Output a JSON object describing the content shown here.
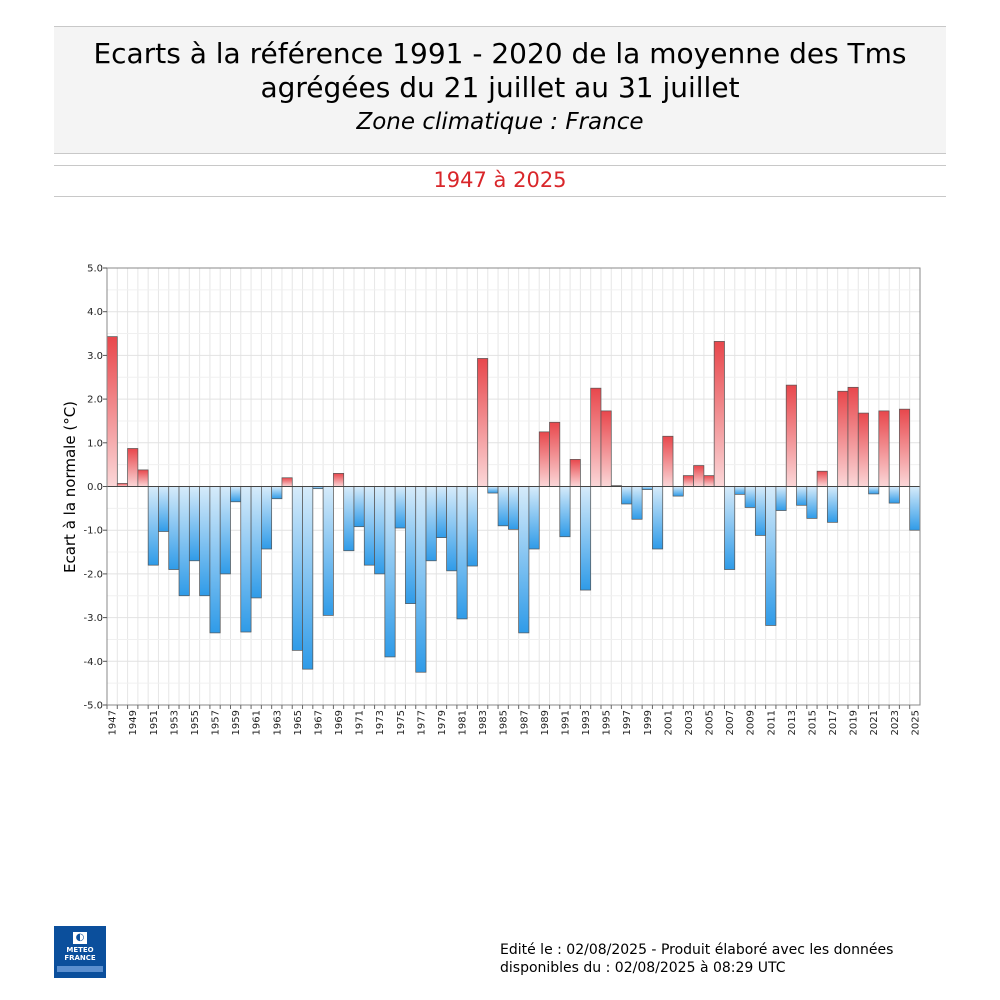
{
  "header": {
    "title_line1": "Ecarts à la référence 1991 - 2020 de la moyenne des Tms",
    "title_line2": "agrégées du 21 juillet au 31 juillet",
    "subtitle": "Zone climatique : France",
    "period": "1947 à 2025",
    "period_color": "#d9262a"
  },
  "footer": {
    "logo_line1": "METEO",
    "logo_line2": "FRANCE",
    "edit_line1": "Edité le : 02/08/2025 - Produit élaboré avec les données",
    "edit_line2": "disponibles du : 02/08/2025 à 08:29 UTC"
  },
  "colors": {
    "positive_dark": "#e8474c",
    "positive_light": "#fbd7d8",
    "negative_dark": "#2f9be8",
    "negative_light": "#d6ebfa"
  },
  "chart_data": {
    "type": "bar",
    "title": "",
    "xlabel": "",
    "ylabel": "Ecart à la normale (°C)",
    "ylim": [
      -5,
      5
    ],
    "yticks": [
      "5.0",
      "4.0",
      "3.0",
      "2.0",
      "1.0",
      "0.0",
      "-1.0",
      "-2.0",
      "-3.0",
      "-4.0",
      "-5.0"
    ],
    "grid": true,
    "x_tick_labels": [
      "1947",
      "1949",
      "1951",
      "1953",
      "1955",
      "1957",
      "1959",
      "1961",
      "1963",
      "1965",
      "1967",
      "1969",
      "1971",
      "1973",
      "1975",
      "1977",
      "1979",
      "1981",
      "1983",
      "1985",
      "1987",
      "1989",
      "1991",
      "1993",
      "1995",
      "1997",
      "1999",
      "2001",
      "2003",
      "2005",
      "2007",
      "2009",
      "2011",
      "2013",
      "2015",
      "2017",
      "2019",
      "2021",
      "2023",
      "2025"
    ],
    "categories": [
      1947,
      1948,
      1949,
      1950,
      1951,
      1952,
      1953,
      1954,
      1955,
      1956,
      1957,
      1958,
      1959,
      1960,
      1961,
      1962,
      1963,
      1964,
      1965,
      1966,
      1967,
      1968,
      1969,
      1970,
      1971,
      1972,
      1973,
      1974,
      1975,
      1976,
      1977,
      1978,
      1979,
      1980,
      1981,
      1982,
      1983,
      1984,
      1985,
      1986,
      1987,
      1988,
      1989,
      1990,
      1991,
      1992,
      1993,
      1994,
      1995,
      1996,
      1997,
      1998,
      1999,
      2000,
      2001,
      2002,
      2003,
      2004,
      2005,
      2006,
      2007,
      2008,
      2009,
      2010,
      2011,
      2012,
      2013,
      2014,
      2015,
      2016,
      2017,
      2018,
      2019,
      2020,
      2021,
      2022,
      2023,
      2024,
      2025
    ],
    "values": [
      3.43,
      0.07,
      0.87,
      0.38,
      -1.8,
      -1.03,
      -1.9,
      -2.5,
      -1.7,
      -2.5,
      -3.35,
      -2.0,
      -0.35,
      -3.33,
      -2.55,
      -1.43,
      -0.28,
      0.2,
      -3.75,
      -4.18,
      -0.05,
      -2.95,
      0.3,
      -1.47,
      -0.92,
      -1.8,
      -2.0,
      -3.9,
      -0.95,
      -2.68,
      -4.25,
      -1.7,
      -1.17,
      -1.93,
      -3.03,
      -1.82,
      2.93,
      -0.15,
      -0.9,
      -0.98,
      -3.35,
      -1.43,
      1.25,
      1.47,
      -1.15,
      0.62,
      -2.37,
      2.25,
      1.73,
      0.02,
      -0.4,
      -0.75,
      -0.07,
      -1.43,
      1.15,
      -0.22,
      0.25,
      0.48,
      0.25,
      3.32,
      -1.9,
      -0.18,
      -0.48,
      -1.12,
      -3.18,
      -0.55,
      2.32,
      -0.43,
      -0.73,
      0.35,
      -0.82,
      2.18,
      2.27,
      1.68,
      -0.17,
      1.73,
      -0.38,
      1.77,
      -1.0
    ]
  }
}
